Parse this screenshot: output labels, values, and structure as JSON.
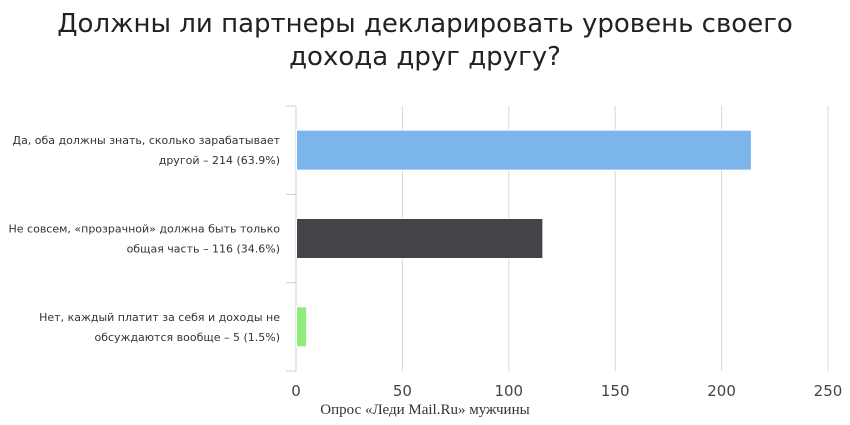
{
  "chart_data": {
    "type": "bar",
    "orientation": "horizontal",
    "title_lines": [
      "Должны ли партнеры декларировать уровень своего",
      "дохода друг другу?"
    ],
    "categories": [
      [
        "Да, оба должны знать, сколько зарабатывает",
        "другой – 214 (63.9%)"
      ],
      [
        "Не совсем, «прозрачной» должна быть только",
        "общая часть – 116 (34.6%)"
      ],
      [
        "Нет, каждый платит за себя и доходы не",
        "обсуждаются вообще – 5 (1.5%)"
      ]
    ],
    "values": [
      214,
      116,
      5
    ],
    "colors": [
      "#7cb5ec",
      "#434348",
      "#90ed7d"
    ],
    "xlim": [
      0,
      250
    ],
    "ticks": [
      0,
      50,
      100,
      150,
      200,
      250
    ],
    "grid": true
  },
  "source": "Опрос  «Леди Mail.Ru» мужчины"
}
